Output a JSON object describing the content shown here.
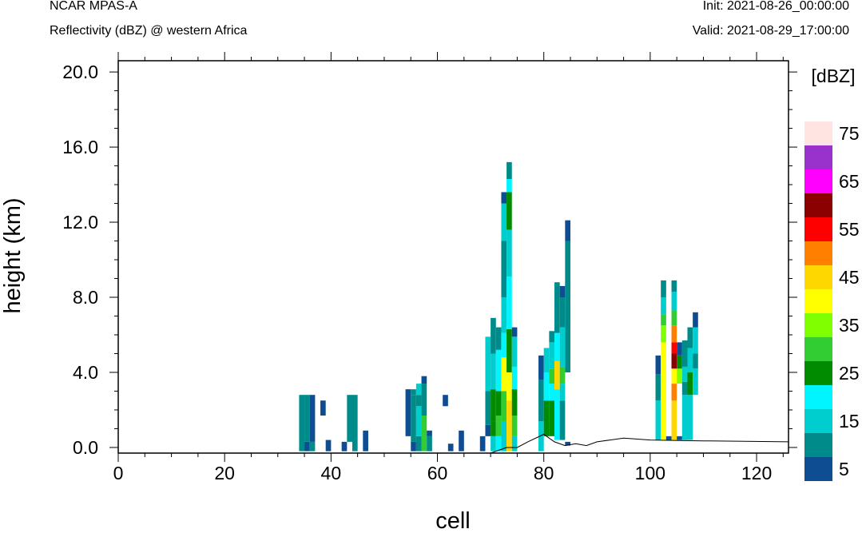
{
  "header": {
    "model": "NCAR MPAS-A",
    "field": "Reflectivity (dBZ) @ western Africa",
    "init": "Init: 2021-08-26_00:00:00",
    "valid": "Valid: 2021-08-29_17:00:00"
  },
  "chart_data": {
    "type": "heatmap",
    "title": "Reflectivity (dBZ) @ western Africa",
    "xlabel": "cell",
    "ylabel": "height (km)",
    "xlim": [
      0,
      126
    ],
    "ylim": [
      -0.3,
      20.6
    ],
    "x_ticks": [
      0,
      20,
      40,
      60,
      80,
      100,
      120
    ],
    "x_tick_labels": [
      "0",
      "20",
      "40",
      "60",
      "80",
      "100",
      "120"
    ],
    "y_ticks": [
      0,
      4,
      8,
      12,
      16,
      20
    ],
    "y_tick_labels": [
      "0.0",
      "4.0",
      "8.0",
      "12.0",
      "16.0",
      "20.0"
    ],
    "colorbar": {
      "title": "[dBZ]",
      "levels": [
        5,
        10,
        15,
        20,
        25,
        30,
        35,
        40,
        45,
        50,
        55,
        60,
        65,
        70,
        75
      ],
      "labels": [
        "5",
        "15",
        "25",
        "35",
        "45",
        "55",
        "65",
        "75"
      ],
      "colors": [
        "#0e4d92",
        "#008b8b",
        "#00cdcd",
        "#00f5ff",
        "#008b00",
        "#32cd32",
        "#7fff00",
        "#ffff00",
        "#ffd700",
        "#ff7f00",
        "#ff0000",
        "#8b0000",
        "#ff00ff",
        "#9932cc",
        "#ffe4e1"
      ]
    },
    "terrain": [
      [
        0,
        -0.3
      ],
      [
        70,
        -0.3
      ],
      [
        73,
        0
      ],
      [
        75,
        0
      ],
      [
        77,
        0.3
      ],
      [
        80,
        0.7
      ],
      [
        82,
        0.3
      ],
      [
        84,
        0.1
      ],
      [
        86,
        0.2
      ],
      [
        88,
        0.1
      ],
      [
        90,
        0.3
      ],
      [
        95,
        0.5
      ],
      [
        100,
        0.4
      ],
      [
        110,
        0.35
      ],
      [
        126,
        0.3
      ]
    ],
    "cells": [
      {
        "x": 34.5,
        "bins": [
          [
            -0.2,
            2.8,
            10
          ]
        ]
      },
      {
        "x": 35.5,
        "bins": [
          [
            -0.2,
            0.3,
            5
          ],
          [
            0.3,
            2.8,
            10
          ]
        ]
      },
      {
        "x": 36.5,
        "bins": [
          [
            -0.2,
            0.3,
            10
          ],
          [
            0.3,
            2.8,
            5
          ]
        ]
      },
      {
        "x": 38.5,
        "bins": [
          [
            1.7,
            2.5,
            5
          ]
        ]
      },
      {
        "x": 39.5,
        "bins": [
          [
            -0.2,
            0.4,
            5
          ]
        ]
      },
      {
        "x": 42.5,
        "bins": [
          [
            -0.2,
            0.3,
            5
          ]
        ]
      },
      {
        "x": 43.5,
        "bins": [
          [
            0.3,
            2.8,
            10
          ]
        ]
      },
      {
        "x": 44.5,
        "bins": [
          [
            -0.2,
            2.8,
            10
          ]
        ]
      },
      {
        "x": 46.5,
        "bins": [
          [
            -0.2,
            0.9,
            5
          ]
        ]
      },
      {
        "x": 54.5,
        "bins": [
          [
            0.6,
            3.1,
            5
          ]
        ]
      },
      {
        "x": 55.5,
        "bins": [
          [
            -0.2,
            0.3,
            5
          ],
          [
            0.3,
            2.8,
            10
          ],
          [
            2.8,
            3.1,
            10
          ]
        ]
      },
      {
        "x": 56.5,
        "bins": [
          [
            -0.2,
            0.6,
            10
          ],
          [
            0.6,
            2.2,
            15
          ],
          [
            2.2,
            2.8,
            10
          ],
          [
            2.8,
            3.4,
            15
          ]
        ]
      },
      {
        "x": 57.5,
        "bins": [
          [
            -0.2,
            1.7,
            30
          ],
          [
            1.7,
            3.4,
            10
          ],
          [
            3.4,
            3.8,
            5
          ]
        ]
      },
      {
        "x": 58.5,
        "bins": [
          [
            -0.2,
            0.6,
            10
          ],
          [
            0.6,
            0.9,
            5
          ]
        ]
      },
      {
        "x": 61.5,
        "bins": [
          [
            2.2,
            2.8,
            5
          ]
        ]
      },
      {
        "x": 62.5,
        "bins": [
          [
            -0.2,
            0.2,
            5
          ]
        ]
      },
      {
        "x": 64.5,
        "bins": [
          [
            -0.2,
            0.9,
            5
          ]
        ]
      },
      {
        "x": 68.5,
        "bins": [
          [
            -0.2,
            0.6,
            5
          ]
        ]
      },
      {
        "x": 69.5,
        "bins": [
          [
            0.6,
            1.2,
            5
          ],
          [
            1.2,
            3.0,
            10
          ],
          [
            3.0,
            5.9,
            15
          ]
        ]
      },
      {
        "x": 70.5,
        "bins": [
          [
            -0.2,
            0.6,
            15
          ],
          [
            0.6,
            1.4,
            25
          ],
          [
            1.4,
            3.1,
            25
          ],
          [
            3.1,
            5.0,
            15
          ],
          [
            5.0,
            6.9,
            10
          ]
        ]
      },
      {
        "x": 71.5,
        "bins": [
          [
            -0.2,
            0.6,
            20
          ],
          [
            0.6,
            1.7,
            30
          ],
          [
            1.7,
            3.0,
            25
          ],
          [
            3.0,
            5.2,
            20
          ],
          [
            5.2,
            6.4,
            10
          ]
        ]
      },
      {
        "x": 72.5,
        "bins": [
          [
            -0.2,
            1.4,
            15
          ],
          [
            1.4,
            3.0,
            30
          ],
          [
            3.0,
            4.8,
            40
          ],
          [
            4.8,
            6.1,
            20
          ],
          [
            6.1,
            8.0,
            15
          ],
          [
            8.0,
            11.0,
            10
          ],
          [
            11.0,
            13.0,
            15
          ],
          [
            13.0,
            13.6,
            5
          ]
        ]
      },
      {
        "x": 73.5,
        "bins": [
          [
            -0.2,
            2.5,
            45
          ],
          [
            2.5,
            4.0,
            40
          ],
          [
            4.0,
            6.3,
            25
          ],
          [
            6.3,
            9.1,
            20
          ],
          [
            9.1,
            11.6,
            15
          ],
          [
            11.6,
            13.6,
            25
          ],
          [
            13.6,
            14.3,
            20
          ],
          [
            14.3,
            15.2,
            10
          ]
        ]
      },
      {
        "x": 74.5,
        "bins": [
          [
            -0.2,
            0.6,
            15
          ],
          [
            0.6,
            1.7,
            30
          ],
          [
            1.7,
            3.1,
            25
          ],
          [
            3.1,
            4.3,
            20
          ],
          [
            4.3,
            5.9,
            15
          ],
          [
            5.9,
            6.4,
            5
          ]
        ]
      },
      {
        "x": 79.5,
        "bins": [
          [
            -0.2,
            1.4,
            15
          ],
          [
            1.4,
            3.6,
            10
          ],
          [
            3.6,
            4.9,
            5
          ]
        ]
      },
      {
        "x": 80.5,
        "bins": [
          [
            0.6,
            2.5,
            25
          ],
          [
            2.5,
            4.0,
            20
          ],
          [
            4.0,
            5.3,
            15
          ]
        ]
      },
      {
        "x": 81.5,
        "bins": [
          [
            0.6,
            2.5,
            25
          ],
          [
            2.5,
            3.4,
            20
          ],
          [
            3.4,
            4.2,
            30
          ],
          [
            4.2,
            5.6,
            15
          ],
          [
            5.6,
            6.2,
            10
          ]
        ]
      },
      {
        "x": 82.5,
        "bins": [
          [
            0.4,
            3.1,
            20
          ],
          [
            3.1,
            4.6,
            45
          ],
          [
            4.6,
            6.1,
            20
          ],
          [
            6.1,
            8.8,
            10
          ]
        ]
      },
      {
        "x": 83.5,
        "bins": [
          [
            0.4,
            2.5,
            10
          ],
          [
            2.5,
            3.4,
            15
          ],
          [
            3.4,
            4.3,
            30
          ],
          [
            4.3,
            6.4,
            15
          ],
          [
            6.4,
            8.0,
            10
          ],
          [
            8.0,
            8.6,
            5
          ]
        ]
      },
      {
        "x": 84.5,
        "bins": [
          [
            0.1,
            0.3,
            5
          ],
          [
            4.0,
            11.0,
            10
          ],
          [
            11.0,
            12.1,
            5
          ]
        ]
      },
      {
        "x": 101.5,
        "bins": [
          [
            0.4,
            2.5,
            15
          ],
          [
            2.5,
            3.9,
            10
          ],
          [
            3.9,
            4.9,
            5
          ]
        ]
      },
      {
        "x": 102.5,
        "bins": [
          [
            0.4,
            5.6,
            40
          ],
          [
            5.6,
            6.5,
            35
          ],
          [
            6.5,
            7.1,
            30
          ],
          [
            7.1,
            8.0,
            15
          ],
          [
            8.0,
            8.9,
            10
          ]
        ]
      },
      {
        "x": 103.5,
        "bins": [
          [
            0.4,
            0.6,
            5
          ]
        ]
      },
      {
        "x": 104.5,
        "bins": [
          [
            0.4,
            2.5,
            45
          ],
          [
            2.5,
            3.4,
            50
          ],
          [
            3.4,
            4.2,
            40
          ],
          [
            4.2,
            5.0,
            60
          ],
          [
            5.0,
            5.6,
            55
          ],
          [
            5.6,
            6.5,
            50
          ],
          [
            6.5,
            7.3,
            30
          ],
          [
            7.3,
            8.3,
            15
          ],
          [
            8.3,
            8.9,
            10
          ]
        ]
      },
      {
        "x": 105.5,
        "bins": [
          [
            0.4,
            0.6,
            5
          ],
          [
            3.4,
            4.2,
            35
          ],
          [
            4.2,
            4.9,
            25
          ],
          [
            4.9,
            5.6,
            5
          ]
        ]
      },
      {
        "x": 106.5,
        "bins": [
          [
            0.4,
            2.8,
            15
          ],
          [
            2.8,
            3.5,
            10
          ],
          [
            3.5,
            4.3,
            15
          ],
          [
            4.3,
            5.7,
            10
          ]
        ]
      },
      {
        "x": 107.5,
        "bins": [
          [
            0.4,
            2.8,
            15
          ],
          [
            2.8,
            4.0,
            25
          ],
          [
            4.0,
            5.3,
            15
          ],
          [
            5.3,
            6.4,
            10
          ]
        ]
      },
      {
        "x": 108.5,
        "bins": [
          [
            2.8,
            4.2,
            15
          ],
          [
            4.2,
            5.0,
            10
          ],
          [
            5.0,
            6.4,
            15
          ],
          [
            6.4,
            7.2,
            5
          ]
        ]
      }
    ]
  }
}
